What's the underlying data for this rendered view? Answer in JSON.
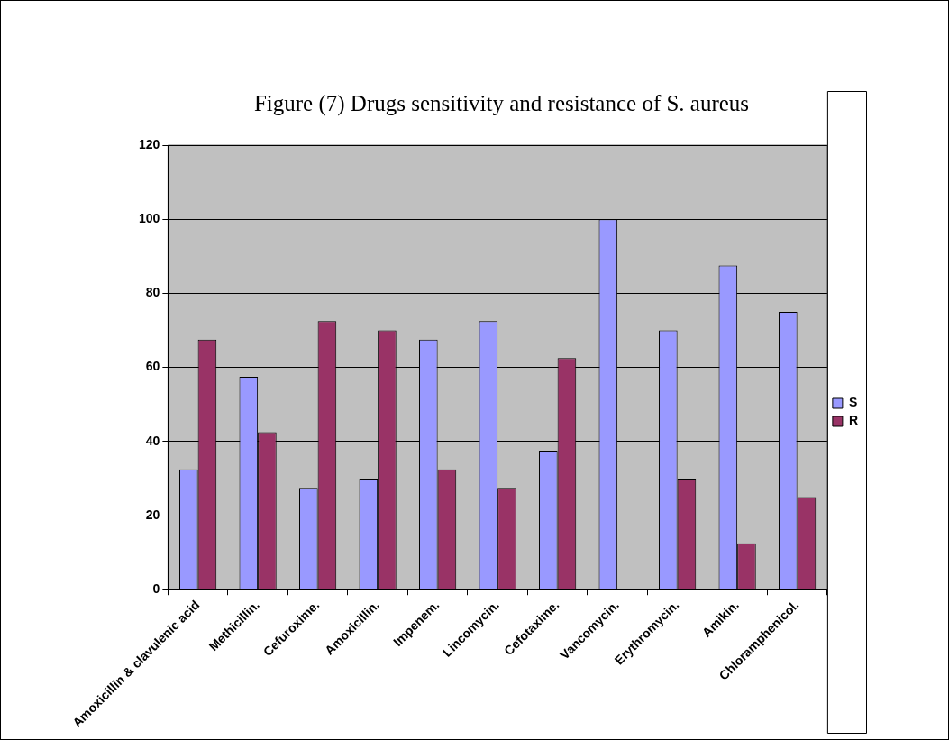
{
  "chart_data": {
    "type": "bar",
    "title": "Figure (7) Drugs sensitivity and resistance of S. aureus",
    "categories": [
      "Amoxicillin & clavulenic acid",
      "Methicillin.",
      "Cefuroxime.",
      "Amoxicillin.",
      "Impenem.",
      "Lincomycin.",
      "Cefotaxime.",
      "Vancomycin.",
      "Erythromycin.",
      "Amikin.",
      "Chloramphenicol."
    ],
    "series": [
      {
        "name": "S",
        "color": "#9999ff",
        "values": [
          32.5,
          57.5,
          27.5,
          30,
          67.5,
          72.5,
          37.5,
          100,
          70,
          87.5,
          75
        ]
      },
      {
        "name": "R",
        "color": "#993366",
        "values": [
          67.5,
          42.5,
          72.5,
          70,
          32.5,
          27.5,
          62.5,
          0,
          30,
          12.5,
          25
        ]
      }
    ],
    "ylim": [
      0,
      120
    ],
    "yticks": [
      0,
      20,
      40,
      60,
      80,
      100,
      120
    ],
    "grid": "y",
    "legend": "right"
  }
}
